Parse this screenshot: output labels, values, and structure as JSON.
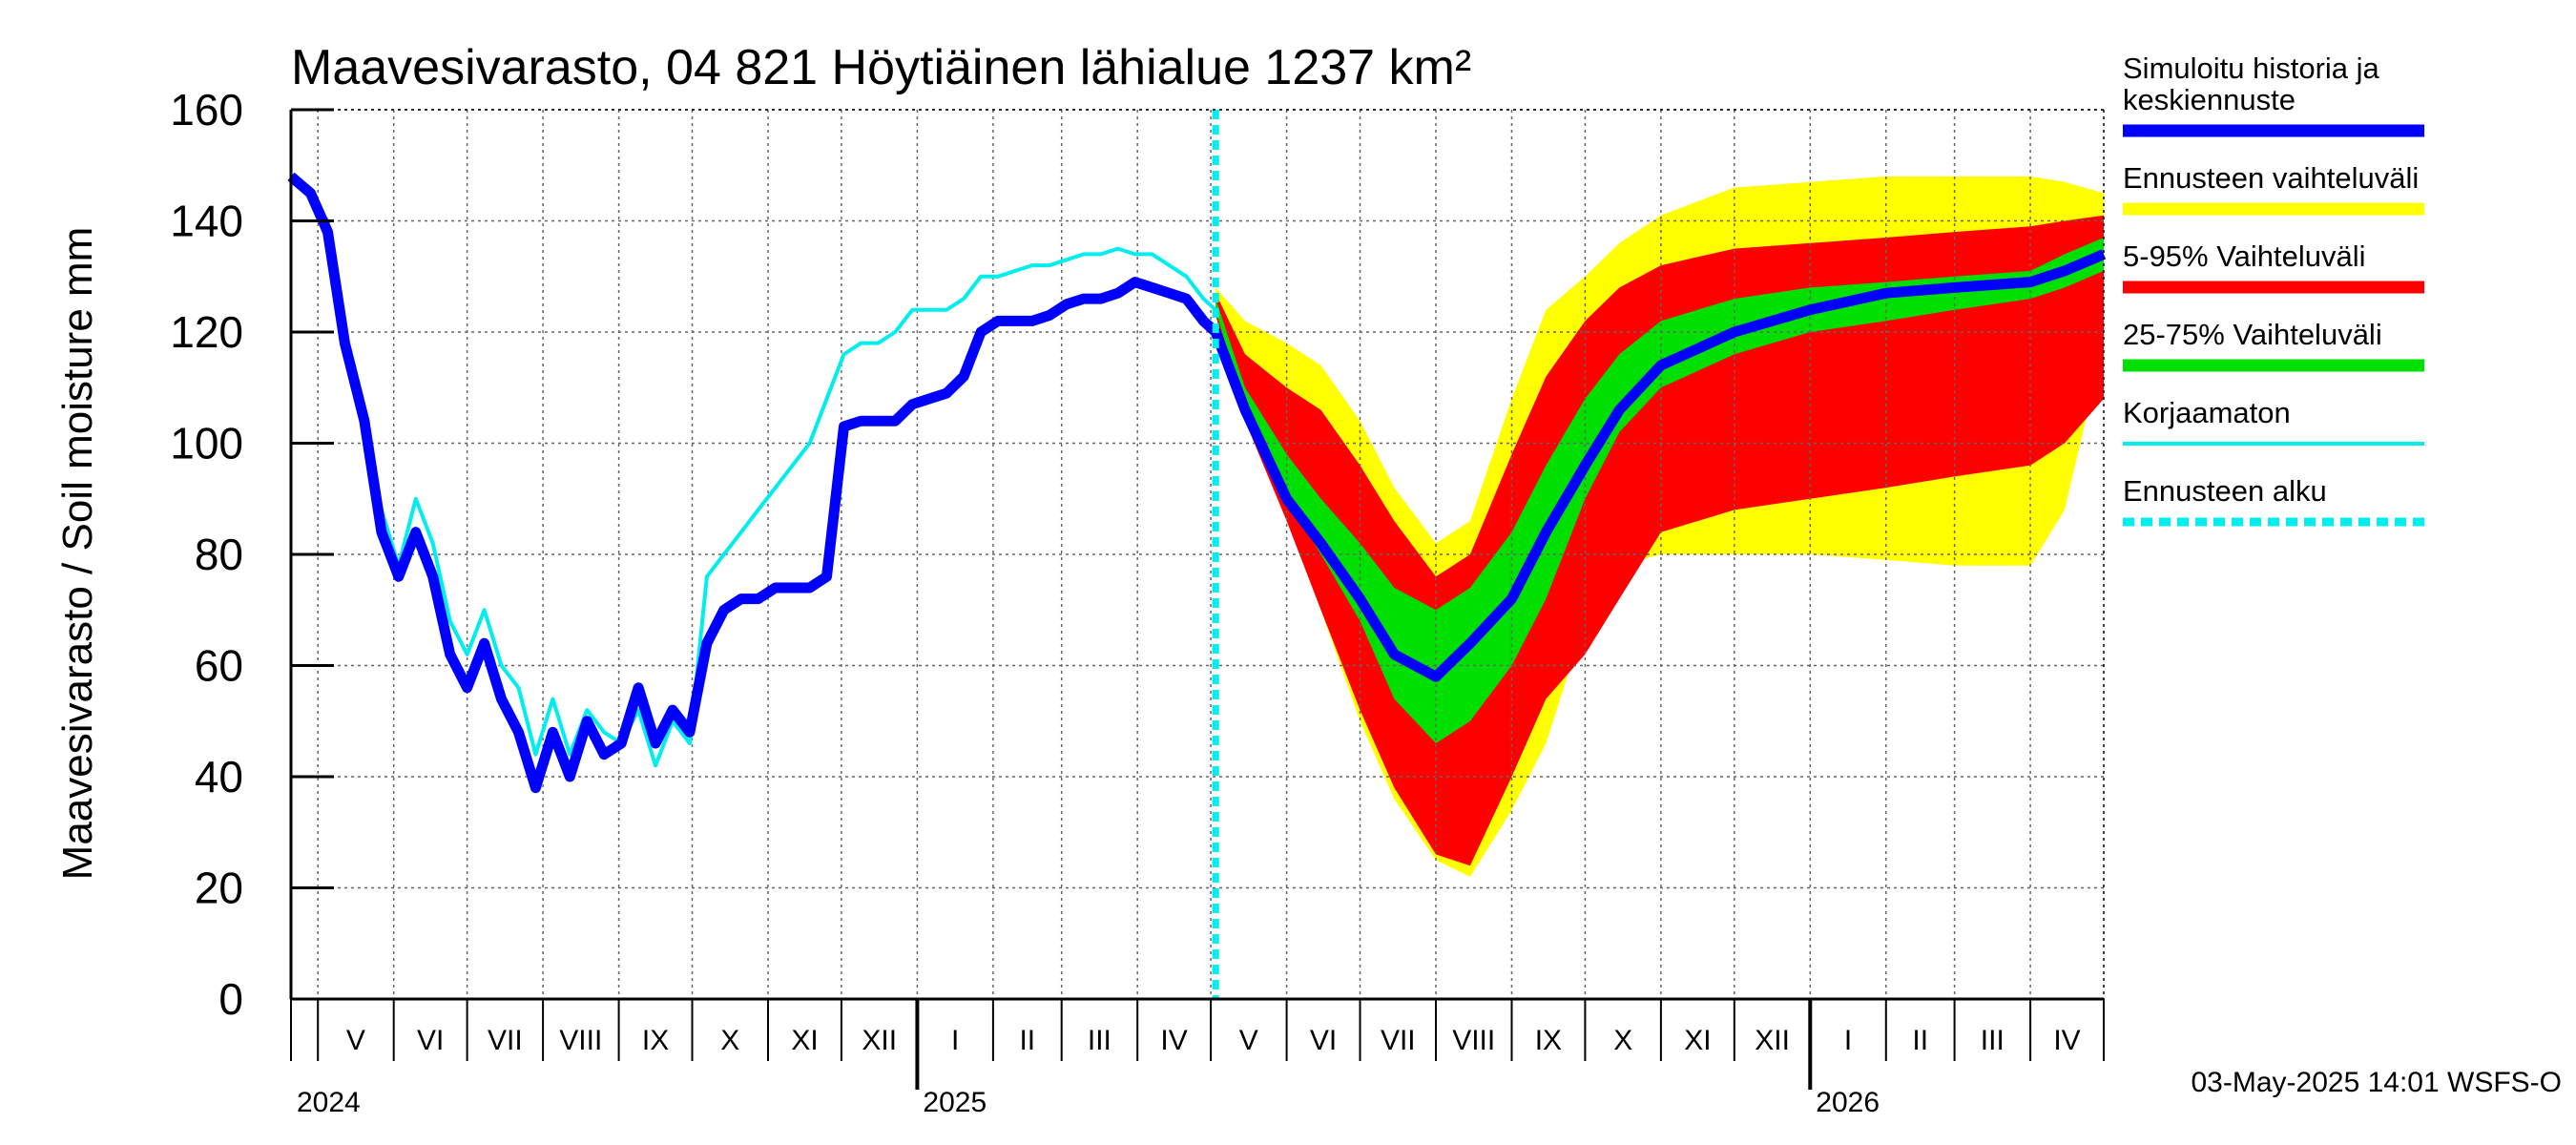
{
  "chart_data": {
    "type": "area",
    "title": "Maavesivarasto, 04 821 Höytiäinen lähialue 1237 km²",
    "ylabel": "Maavesivarasto / Soil moisture   mm",
    "ylim": [
      0,
      160
    ],
    "yticks": [
      "0",
      "20",
      "40",
      "60",
      "80",
      "100",
      "120",
      "140",
      "160"
    ],
    "xlim": [
      "2024-04-20",
      "2026-05-01"
    ],
    "grid": true,
    "month_ticks": [
      "2024-04-20",
      "2024-05-01",
      "2024-06-01",
      "2024-07-01",
      "2024-08-01",
      "2024-09-01",
      "2024-10-01",
      "2024-11-01",
      "2024-12-01",
      "2025-01-01",
      "2025-02-01",
      "2025-03-01",
      "2025-04-01",
      "2025-05-01",
      "2025-06-01",
      "2025-07-01",
      "2025-08-01",
      "2025-09-01",
      "2025-10-01",
      "2025-11-01",
      "2025-12-01",
      "2026-01-01",
      "2026-02-01",
      "2026-03-01",
      "2026-04-01",
      "2026-05-01"
    ],
    "month_labels": [
      {
        "month": "2024-05",
        "label": "V"
      },
      {
        "month": "2024-06",
        "label": "VI"
      },
      {
        "month": "2024-07",
        "label": "VII"
      },
      {
        "month": "2024-08",
        "label": "VIII"
      },
      {
        "month": "2024-09",
        "label": "IX"
      },
      {
        "month": "2024-10",
        "label": "X"
      },
      {
        "month": "2024-11",
        "label": "XI"
      },
      {
        "month": "2024-12",
        "label": "XII"
      },
      {
        "month": "2025-01",
        "label": "I"
      },
      {
        "month": "2025-02",
        "label": "II"
      },
      {
        "month": "2025-03",
        "label": "III"
      },
      {
        "month": "2025-04",
        "label": "IV"
      },
      {
        "month": "2025-05",
        "label": "V"
      },
      {
        "month": "2025-06",
        "label": "VI"
      },
      {
        "month": "2025-07",
        "label": "VII"
      },
      {
        "month": "2025-08",
        "label": "VIII"
      },
      {
        "month": "2025-09",
        "label": "IX"
      },
      {
        "month": "2025-10",
        "label": "X"
      },
      {
        "month": "2025-11",
        "label": "XI"
      },
      {
        "month": "2025-12",
        "label": "XII"
      },
      {
        "month": "2026-01",
        "label": "I"
      },
      {
        "month": "2026-02",
        "label": "II"
      },
      {
        "month": "2026-03",
        "label": "III"
      },
      {
        "month": "2026-04",
        "label": "IV"
      }
    ],
    "year_ticks": [
      "2025-01-01",
      "2026-01-01"
    ],
    "year_labels": [
      {
        "date": "2024-04-20",
        "label": "2024"
      },
      {
        "date": "2025-01-01",
        "label": "2025"
      },
      {
        "date": "2026-01-01",
        "label": "2026"
      }
    ],
    "forecast_start": "2025-05-03",
    "bands": [
      {
        "name": "Ennusteen vaihteluväli",
        "color": "#ffff00",
        "x": [
          "2025-05-03",
          "2025-05-15",
          "2025-06-01",
          "2025-06-15",
          "2025-07-01",
          "2025-07-15",
          "2025-08-01",
          "2025-08-15",
          "2025-09-01",
          "2025-09-15",
          "2025-10-01",
          "2025-10-15",
          "2025-11-01",
          "2025-12-01",
          "2026-01-01",
          "2026-02-01",
          "2026-03-01",
          "2026-04-01",
          "2026-04-15",
          "2026-05-01"
        ],
        "upper": [
          128,
          122,
          118,
          114,
          104,
          92,
          82,
          86,
          108,
          124,
          130,
          136,
          141,
          146,
          147,
          148,
          148,
          148,
          147,
          145
        ],
        "lower": [
          124,
          104,
          88,
          70,
          50,
          36,
          25,
          22,
          34,
          46,
          68,
          78,
          80,
          80,
          80,
          79,
          78,
          78,
          88,
          118
        ]
      },
      {
        "name": "5-95% Vaihteluväli",
        "color": "#ff0000",
        "x": [
          "2025-05-03",
          "2025-05-15",
          "2025-06-01",
          "2025-06-15",
          "2025-07-01",
          "2025-07-15",
          "2025-08-01",
          "2025-08-15",
          "2025-09-01",
          "2025-09-15",
          "2025-10-01",
          "2025-10-15",
          "2025-11-01",
          "2025-12-01",
          "2026-01-01",
          "2026-02-01",
          "2026-03-01",
          "2026-04-01",
          "2026-04-15",
          "2026-05-01"
        ],
        "upper": [
          127,
          116,
          110,
          106,
          96,
          86,
          76,
          80,
          98,
          112,
          122,
          128,
          132,
          135,
          136,
          137,
          138,
          139,
          140,
          141
        ],
        "lower": [
          123,
          104,
          86,
          70,
          52,
          38,
          26,
          24,
          40,
          54,
          62,
          72,
          84,
          88,
          90,
          92,
          94,
          96,
          100,
          108
        ]
      },
      {
        "name": "25-75% Vaihteluväli",
        "color": "#00e000",
        "x": [
          "2025-05-03",
          "2025-05-15",
          "2025-06-01",
          "2025-06-15",
          "2025-07-01",
          "2025-07-15",
          "2025-08-01",
          "2025-08-15",
          "2025-09-01",
          "2025-09-15",
          "2025-10-01",
          "2025-10-15",
          "2025-11-01",
          "2025-12-01",
          "2026-01-01",
          "2026-02-01",
          "2026-03-01",
          "2026-04-01",
          "2026-04-15",
          "2026-05-01"
        ],
        "upper": [
          126,
          110,
          98,
          90,
          82,
          74,
          70,
          74,
          84,
          96,
          108,
          116,
          122,
          126,
          128,
          129,
          130,
          131,
          134,
          137
        ],
        "lower": [
          124,
          106,
          90,
          80,
          68,
          54,
          46,
          50,
          60,
          72,
          90,
          102,
          110,
          116,
          120,
          122,
          124,
          126,
          128,
          131
        ]
      }
    ],
    "series": [
      {
        "name": "Korjaamaton",
        "color": "#00eeee",
        "x": [
          "2024-04-20",
          "2024-04-28",
          "2024-05-05",
          "2024-05-12",
          "2024-05-20",
          "2024-05-27",
          "2024-06-03",
          "2024-06-10",
          "2024-06-17",
          "2024-06-24",
          "2024-07-01",
          "2024-07-08",
          "2024-07-15",
          "2024-07-22",
          "2024-07-29",
          "2024-08-05",
          "2024-08-12",
          "2024-08-19",
          "2024-08-26",
          "2024-09-02",
          "2024-09-09",
          "2024-09-16",
          "2024-09-23",
          "2024-09-30",
          "2024-10-07",
          "2024-10-14",
          "2024-10-21",
          "2024-10-28",
          "2024-11-04",
          "2024-11-11",
          "2024-11-18",
          "2024-11-25",
          "2024-12-02",
          "2024-12-09",
          "2024-12-16",
          "2024-12-23",
          "2024-12-30",
          "2025-01-06",
          "2025-01-13",
          "2025-01-20",
          "2025-01-27",
          "2025-02-03",
          "2025-02-10",
          "2025-02-17",
          "2025-02-24",
          "2025-03-03",
          "2025-03-10",
          "2025-03-17",
          "2025-03-24",
          "2025-03-31",
          "2025-04-07",
          "2025-04-14",
          "2025-04-21",
          "2025-04-28",
          "2025-05-03"
        ],
        "y": [
          148,
          144,
          140,
          120,
          106,
          88,
          78,
          90,
          82,
          68,
          62,
          70,
          60,
          56,
          44,
          54,
          44,
          52,
          48,
          46,
          52,
          42,
          50,
          46,
          76,
          80,
          84,
          88,
          92,
          96,
          100,
          108,
          116,
          118,
          118,
          120,
          124,
          124,
          124,
          126,
          130,
          130,
          131,
          132,
          132,
          133,
          134,
          134,
          135,
          134,
          134,
          132,
          130,
          126,
          124
        ]
      },
      {
        "name": "Simuloitu historia ja keskiennuste",
        "color": "#0000ff",
        "x": [
          "2024-04-20",
          "2024-04-28",
          "2024-05-05",
          "2024-05-12",
          "2024-05-20",
          "2024-05-27",
          "2024-06-03",
          "2024-06-10",
          "2024-06-17",
          "2024-06-24",
          "2024-07-01",
          "2024-07-08",
          "2024-07-15",
          "2024-07-22",
          "2024-07-29",
          "2024-08-05",
          "2024-08-12",
          "2024-08-19",
          "2024-08-26",
          "2024-09-02",
          "2024-09-09",
          "2024-09-16",
          "2024-09-23",
          "2024-09-30",
          "2024-10-07",
          "2024-10-14",
          "2024-10-21",
          "2024-10-28",
          "2024-11-04",
          "2024-11-11",
          "2024-11-18",
          "2024-11-25",
          "2024-12-02",
          "2024-12-09",
          "2024-12-16",
          "2024-12-23",
          "2024-12-30",
          "2025-01-06",
          "2025-01-13",
          "2025-01-20",
          "2025-01-27",
          "2025-02-03",
          "2025-02-10",
          "2025-02-17",
          "2025-02-24",
          "2025-03-03",
          "2025-03-10",
          "2025-03-17",
          "2025-03-24",
          "2025-03-31",
          "2025-04-07",
          "2025-04-14",
          "2025-04-21",
          "2025-04-28",
          "2025-05-03",
          "2025-05-15",
          "2025-06-01",
          "2025-06-15",
          "2025-07-01",
          "2025-07-15",
          "2025-08-01",
          "2025-08-15",
          "2025-09-01",
          "2025-09-15",
          "2025-10-01",
          "2025-10-15",
          "2025-11-01",
          "2025-12-01",
          "2026-01-01",
          "2026-02-01",
          "2026-03-01",
          "2026-04-01",
          "2026-04-15",
          "2026-05-01"
        ],
        "y": [
          148,
          145,
          138,
          118,
          104,
          84,
          76,
          84,
          76,
          62,
          56,
          64,
          54,
          48,
          38,
          48,
          40,
          50,
          44,
          46,
          56,
          46,
          52,
          48,
          64,
          70,
          72,
          72,
          74,
          74,
          74,
          76,
          103,
          104,
          104,
          104,
          107,
          108,
          109,
          112,
          120,
          122,
          122,
          122,
          123,
          125,
          126,
          126,
          127,
          129,
          128,
          127,
          126,
          122,
          120,
          106,
          90,
          82,
          72,
          62,
          58,
          64,
          72,
          84,
          96,
          106,
          114,
          120,
          124,
          127,
          128,
          129,
          131,
          134
        ]
      }
    ],
    "legend": [
      {
        "label": "Simuloitu historia ja keskiennuste",
        "lines": [
          "Simuloitu historia ja",
          "keskiennuste"
        ],
        "color": "#0000ff",
        "style": "solid"
      },
      {
        "label": "Ennusteen vaihteluväli",
        "lines": [
          "Ennusteen vaihteluväli"
        ],
        "color": "#ffff00",
        "style": "solid"
      },
      {
        "label": "5-95% Vaihteluväli",
        "lines": [
          "5-95% Vaihteluväli"
        ],
        "color": "#ff0000",
        "style": "solid"
      },
      {
        "label": "25-75% Vaihteluväli",
        "lines": [
          "25-75% Vaihteluväli"
        ],
        "color": "#00e000",
        "style": "solid"
      },
      {
        "label": "Korjaamaton",
        "lines": [
          "Korjaamaton"
        ],
        "color": "#00eeee",
        "style": "thin"
      },
      {
        "label": "Ennusteen alku",
        "lines": [
          "Ennusteen alku"
        ],
        "color": "#00eeee",
        "style": "dashed"
      }
    ],
    "legend_placement": "right",
    "footer": "03-May-2025 14:01 WSFS-O"
  }
}
